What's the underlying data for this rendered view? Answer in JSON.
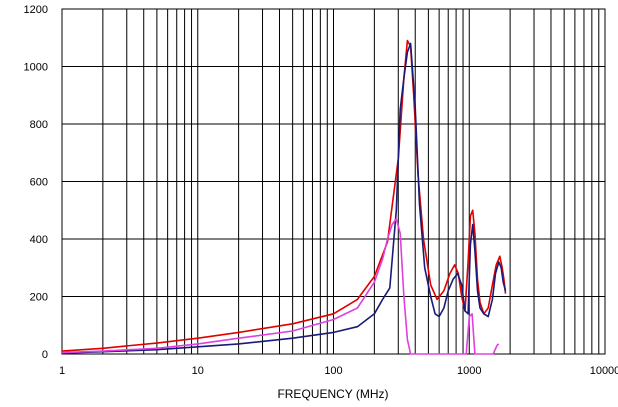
{
  "chart_data": {
    "type": "line",
    "title": "",
    "xlabel": "FREQUENCY (MHz)",
    "ylabel": "",
    "x_scale": "log",
    "xlim": [
      1,
      10000
    ],
    "ylim": [
      0,
      1200
    ],
    "x_tick_labels": [
      "1",
      "10",
      "100",
      "1000",
      "10000"
    ],
    "y_tick_labels": [
      "0",
      "200",
      "400",
      "600",
      "800",
      "1000",
      "1200"
    ],
    "x_ticks": [
      1,
      10,
      100,
      1000,
      10000
    ],
    "y_ticks": [
      0,
      200,
      400,
      600,
      800,
      1000,
      1200
    ],
    "grid": true,
    "legend": "none",
    "series": [
      {
        "color": "#e00000",
        "x": [
          1,
          2,
          3,
          5,
          10,
          20,
          50,
          100,
          150,
          200,
          250,
          300,
          330,
          350,
          370,
          390,
          420,
          460,
          520,
          580,
          650,
          720,
          780,
          830,
          880,
          930,
          980,
          1020,
          1060,
          1100,
          1150,
          1200,
          1280,
          1380,
          1480,
          1580,
          1680,
          1750,
          1800,
          1850
        ],
        "y": [
          10,
          20,
          28,
          38,
          55,
          75,
          105,
          140,
          190,
          270,
          390,
          680,
          960,
          1090,
          1070,
          900,
          620,
          400,
          240,
          190,
          220,
          280,
          310,
          280,
          200,
          150,
          320,
          480,
          500,
          420,
          260,
          180,
          140,
          160,
          240,
          310,
          340,
          300,
          260,
          210
        ]
      },
      {
        "color": "#1a1a7a",
        "x": [
          1,
          2,
          5,
          10,
          20,
          50,
          100,
          150,
          200,
          230,
          260,
          290,
          310,
          330,
          350,
          370,
          400,
          430,
          470,
          520,
          560,
          600,
          650,
          700,
          760,
          820,
          880,
          930,
          980,
          1020,
          1060,
          1100,
          1150,
          1200,
          1280,
          1380,
          1480,
          1560,
          1650,
          1720,
          1780,
          1850
        ],
        "y": [
          3,
          8,
          15,
          25,
          35,
          55,
          75,
          95,
          140,
          190,
          230,
          500,
          850,
          960,
          1050,
          1080,
          860,
          520,
          300,
          200,
          140,
          130,
          160,
          220,
          260,
          280,
          240,
          150,
          140,
          380,
          450,
          360,
          220,
          160,
          140,
          130,
          190,
          280,
          320,
          300,
          250,
          220
        ]
      },
      {
        "color": "#e040e0",
        "x": [
          1,
          2,
          5,
          10,
          20,
          50,
          100,
          150,
          200,
          230,
          250,
          270,
          290,
          310,
          330,
          350,
          370,
          950,
          1000,
          1050,
          1100,
          1500,
          1600,
          1650
        ],
        "y": [
          5,
          10,
          20,
          35,
          55,
          80,
          120,
          160,
          250,
          330,
          400,
          450,
          470,
          420,
          200,
          50,
          0,
          0,
          130,
          140,
          0,
          0,
          30,
          35
        ]
      }
    ]
  }
}
